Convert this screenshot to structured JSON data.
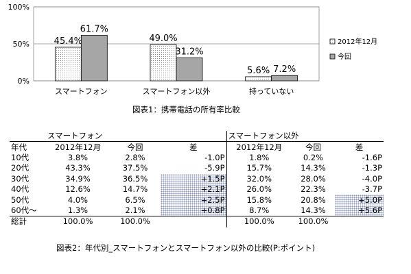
{
  "chart_data": {
    "type": "bar",
    "title": "図表1：携帯電話の所有率比較",
    "categories": [
      "スマートフォン",
      "スマートフォン以外",
      "持っていない"
    ],
    "series": [
      {
        "name": "2012年12月",
        "values": [
          45.4,
          49.0,
          5.6
        ],
        "labels": [
          "45.4%",
          "49.0%",
          "5.6%"
        ],
        "pattern": "dotted-white"
      },
      {
        "name": "今回",
        "values": [
          61.7,
          31.2,
          7.2
        ],
        "labels": [
          "61.7%",
          "31.2%",
          "7.2%"
        ],
        "pattern": "gray"
      }
    ],
    "ylim": [
      0,
      100
    ],
    "yticks": [
      0,
      50,
      100
    ],
    "ytick_labels": [
      "0%",
      "50%",
      "100%"
    ],
    "grid": true,
    "legend": "right",
    "colors": {
      "series2": "#a6a6a6",
      "series1_bg": "#ffffff",
      "dots": "#777777"
    }
  },
  "table": {
    "caption": "図表2：年代別_スマートフォンとスマートフォン以外の比較(P:ポイント)",
    "groups": [
      "スマートフォン",
      "スマートフォン以外"
    ],
    "age_header": "年代",
    "subheaders": [
      "2012年12月",
      "今回",
      "差"
    ],
    "rows": [
      {
        "age": "10代",
        "sp": [
          "3.8%",
          "2.8%",
          "-1.0P"
        ],
        "other": [
          "1.8%",
          "0.2%",
          "-1.6P"
        ],
        "sp_hl": false,
        "other_hl": false
      },
      {
        "age": "20代",
        "sp": [
          "43.3%",
          "37.5%",
          "-5.9P"
        ],
        "other": [
          "15.7%",
          "14.3%",
          "-1.3P"
        ],
        "sp_hl": false,
        "other_hl": false
      },
      {
        "age": "30代",
        "sp": [
          "34.9%",
          "36.5%",
          "+1.5P"
        ],
        "other": [
          "32.0%",
          "28.0%",
          "-4.0P"
        ],
        "sp_hl": true,
        "other_hl": false
      },
      {
        "age": "40代",
        "sp": [
          "12.6%",
          "14.7%",
          "+2.1P"
        ],
        "other": [
          "26.0%",
          "22.3%",
          "-3.7P"
        ],
        "sp_hl": true,
        "other_hl": false
      },
      {
        "age": "50代",
        "sp": [
          "4.0%",
          "6.5%",
          "+2.5P"
        ],
        "other": [
          "15.8%",
          "20.8%",
          "+5.0P"
        ],
        "sp_hl": true,
        "other_hl": true
      },
      {
        "age": "60代～",
        "sp": [
          "1.3%",
          "2.1%",
          "+0.8P"
        ],
        "other": [
          "8.7%",
          "14.3%",
          "+5.6P"
        ],
        "sp_hl": true,
        "other_hl": true
      }
    ],
    "total": {
      "age": "総計",
      "sp": [
        "100.0%",
        "100.0%",
        ""
      ],
      "other": [
        "100.0%",
        "100.0%",
        ""
      ]
    }
  }
}
